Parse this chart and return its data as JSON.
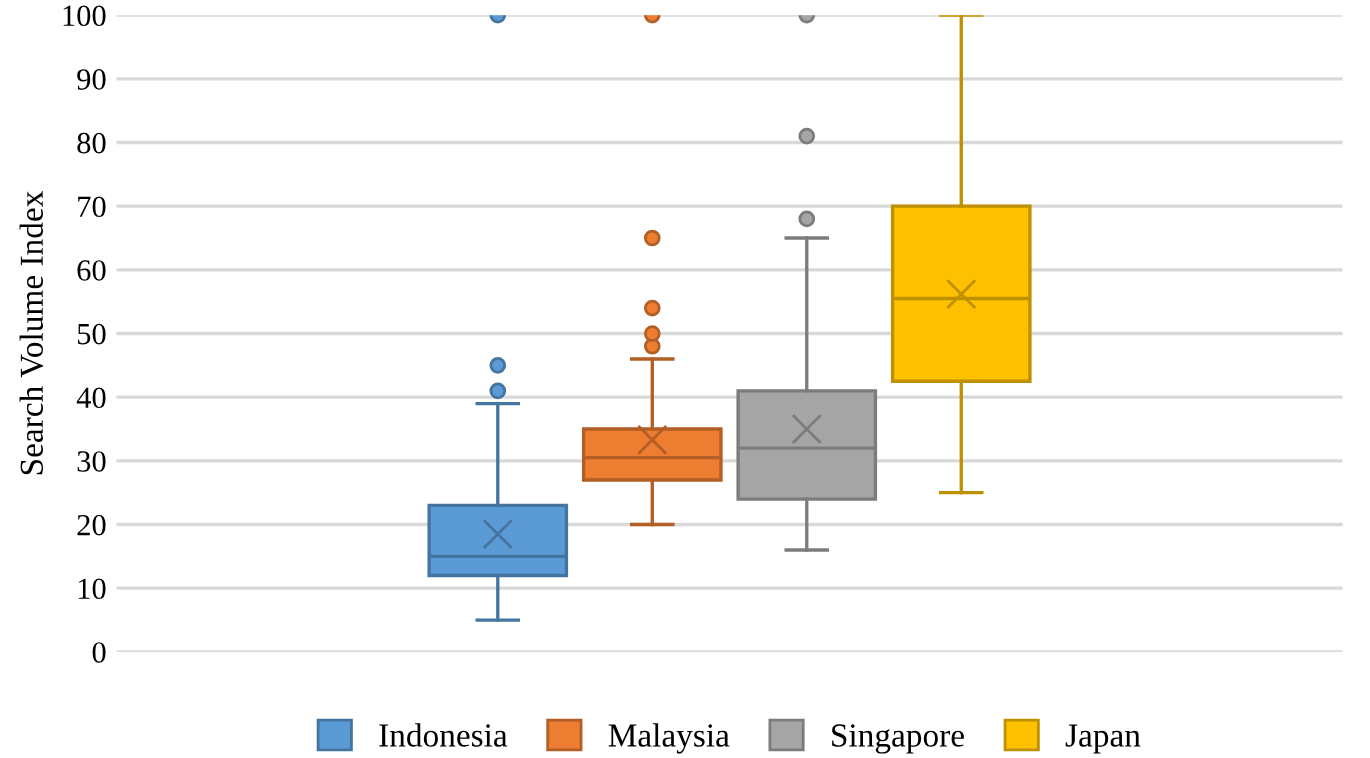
{
  "chart_data": {
    "type": "box",
    "ylabel": "Search Volume Index",
    "categories": [
      null
    ],
    "ylim": [
      0,
      100
    ],
    "yticks": [
      0,
      10,
      20,
      30,
      40,
      50,
      60,
      70,
      80,
      90,
      100
    ],
    "grid": "y",
    "legend": "bottom",
    "series": [
      {
        "name": "Indonesia",
        "color": "#5b9bd5",
        "boxes": [
          {
            "low": 5,
            "q1": 12,
            "median": 15,
            "q3": 23,
            "high": 39,
            "mean": 18.5,
            "outliers": [
              41,
              45,
              100
            ]
          }
        ]
      },
      {
        "name": "Malaysia",
        "color": "#ed7d31",
        "boxes": [
          {
            "low": 20,
            "q1": 27,
            "median": 30.5,
            "q3": 35,
            "high": 46,
            "mean": 33.3,
            "outliers": [
              48,
              50,
              54,
              65,
              100
            ]
          }
        ]
      },
      {
        "name": "Singapore",
        "color": "#a5a5a5",
        "boxes": [
          {
            "low": 16,
            "q1": 24,
            "median": 32,
            "q3": 41,
            "high": 65,
            "mean": 35,
            "outliers": [
              68,
              81,
              100
            ]
          }
        ]
      },
      {
        "name": "Japan",
        "color": "#ffc000",
        "boxes": [
          {
            "low": 25,
            "q1": 42.5,
            "median": 55.5,
            "q3": 70,
            "high": 100,
            "mean": 56.2
          }
        ]
      }
    ]
  }
}
